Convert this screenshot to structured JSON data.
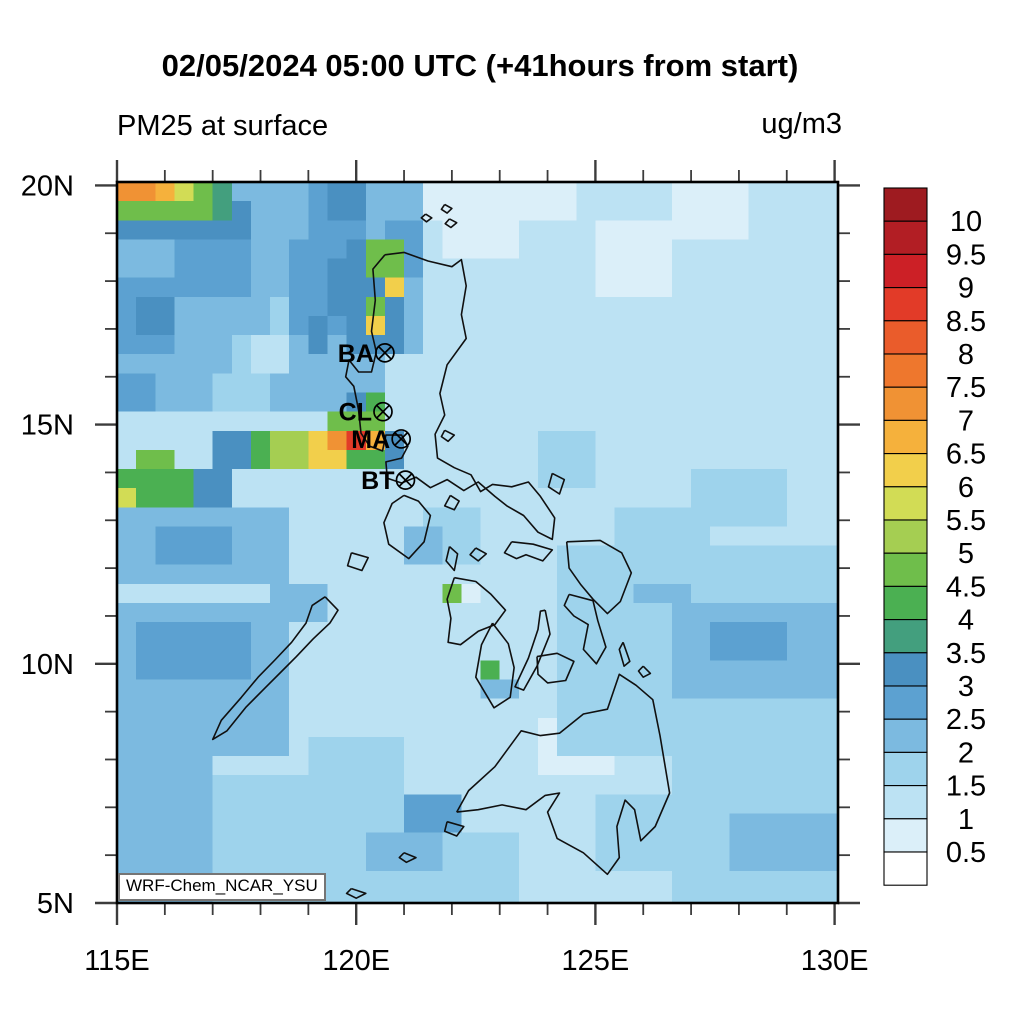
{
  "title": "02/05/2024 05:00 UTC (+41hours from start)",
  "subtitle_left": "PM25 at surface",
  "units_label": "ug/m3",
  "annotation": "WRF-Chem_NCAR_YSU",
  "stations": [
    {
      "id": "BA",
      "lon": 120.6,
      "lat": 16.5
    },
    {
      "id": "CL",
      "lon": 120.56,
      "lat": 15.27
    },
    {
      "id": "MA",
      "lon": 120.94,
      "lat": 14.7
    },
    {
      "id": "BT",
      "lon": 121.03,
      "lat": 13.84
    }
  ],
  "axes": {
    "x_major": [
      {
        "label": "115E",
        "lon": 115
      },
      {
        "label": "120E",
        "lon": 120
      },
      {
        "label": "125E",
        "lon": 125
      },
      {
        "label": "130E",
        "lon": 130
      }
    ],
    "y_major": [
      {
        "label": "20N",
        "lat": 20
      },
      {
        "label": "15N",
        "lat": 15
      },
      {
        "label": "10N",
        "lat": 10
      },
      {
        "label": "5N",
        "lat": 5
      }
    ],
    "minor_step_deg": 1
  },
  "colorbar": {
    "tick_labels": [
      "10",
      "9.5",
      "9",
      "8.5",
      "8",
      "7.5",
      "7",
      "6.5",
      "6",
      "5.5",
      "5",
      "4.5",
      "4",
      "3.5",
      "3",
      "2.5",
      "2",
      "1.5",
      "1",
      "0.5"
    ],
    "colors_low_to_high": [
      "#FFFFFF",
      "#DBEFF9",
      "#BCE2F3",
      "#9ED3EC",
      "#7CBAE0",
      "#5CA1D1",
      "#4A90C1",
      "#439F7E",
      "#4BB052",
      "#6FBE4B",
      "#A5CE52",
      "#D2DC55",
      "#F2CF4B",
      "#F5B13C",
      "#F09234",
      "#EE772D",
      "#EA5C2B",
      "#E23B28",
      "#CC2026",
      "#B21E24",
      "#9E1B20"
    ]
  },
  "chart_data": {
    "type": "heatmap",
    "title": "PM25 at surface",
    "units": "ug/m3",
    "lon_range": [
      115,
      130.07
    ],
    "lat_range": [
      5,
      20.07
    ],
    "cell_deg": 0.4,
    "levels": [
      0.5,
      1,
      1.5,
      2,
      2.5,
      3,
      3.5,
      4,
      4.5,
      5,
      5.5,
      6,
      6.5,
      7,
      7.5,
      8,
      8.5,
      9,
      9.5,
      10
    ],
    "base_value": 1.2,
    "patches": [
      [
        115,
        121.6,
        15.1,
        20.07,
        2.3
      ],
      [
        119.2,
        120.4,
        19.0,
        20.07,
        2.8
      ],
      [
        119.6,
        120.2,
        19.35,
        20.07,
        3.1
      ],
      [
        120.6,
        121.3,
        17.9,
        19.1,
        2.8
      ],
      [
        115.0,
        116.4,
        16.6,
        18.1,
        2.8
      ],
      [
        115.4,
        116.2,
        17.0,
        17.8,
        3.2
      ],
      [
        116.4,
        117.7,
        17.7,
        18.9,
        2.7
      ],
      [
        115.0,
        116.0,
        15.4,
        16.2,
        2.6
      ],
      [
        118.8,
        120.0,
        17.6,
        18.45,
        1.7
      ],
      [
        118.2,
        119.4,
        16.8,
        17.6,
        1.7
      ],
      [
        117.5,
        118.75,
        16.0,
        16.85,
        1.7
      ],
      [
        116.9,
        118.2,
        15.15,
        16.05,
        1.7
      ],
      [
        118.95,
        119.75,
        17.75,
        18.3,
        1.3
      ],
      [
        117.7,
        118.5,
        16.15,
        16.7,
        1.3
      ],
      [
        115,
        117.9,
        18.7,
        19.15,
        3.1
      ],
      [
        116.85,
        117.85,
        18.9,
        19.85,
        3.0
      ],
      [
        115,
        117.25,
        19.1,
        20.07,
        3.7
      ],
      [
        115,
        116.3,
        19.12,
        19.48,
        4.1
      ],
      [
        115,
        116.95,
        19.45,
        20.07,
        4.6
      ],
      [
        115,
        116.5,
        19.68,
        20.07,
        5.5
      ],
      [
        115,
        115.85,
        19.68,
        20.07,
        7.2
      ],
      [
        115.8,
        116.18,
        19.68,
        20.07,
        6.6
      ],
      [
        115,
        115.62,
        19.96,
        20.07,
        8.8
      ],
      [
        119.9,
        121.15,
        16.5,
        18.95,
        3.4
      ],
      [
        118.75,
        119.95,
        16.9,
        18.95,
        2.9
      ],
      [
        119.3,
        119.95,
        17.4,
        18.6,
        3.3
      ],
      [
        120.3,
        120.9,
        18.2,
        18.8,
        4.6
      ],
      [
        120.05,
        120.5,
        18.62,
        18.98,
        4.7
      ],
      [
        120.35,
        120.78,
        17.25,
        17.82,
        4.6
      ],
      [
        120.25,
        120.72,
        16.72,
        17.16,
        4.4
      ],
      [
        120.52,
        120.92,
        17.82,
        18.12,
        6.0
      ],
      [
        120.38,
        120.74,
        16.86,
        17.14,
        6.0
      ],
      [
        118.9,
        119.55,
        16.45,
        17.35,
        3.2
      ],
      [
        120.6,
        121.55,
        14.95,
        16.4,
        1.1
      ],
      [
        119.95,
        120.45,
        15.05,
        15.7,
        3.4
      ],
      [
        120.22,
        120.6,
        15.25,
        15.62,
        4.3
      ],
      [
        117.1,
        121.0,
        13.88,
        15.06,
        3.2
      ],
      [
        117.65,
        120.7,
        14.08,
        14.82,
        4.4
      ],
      [
        118.4,
        120.62,
        14.2,
        14.76,
        5.3
      ],
      [
        118.92,
        120.56,
        14.26,
        14.73,
        6.1
      ],
      [
        119.28,
        120.5,
        14.32,
        14.7,
        7.1
      ],
      [
        119.66,
        120.32,
        14.46,
        14.93,
        8.2
      ],
      [
        119.86,
        120.14,
        14.6,
        14.93,
        8.8
      ],
      [
        119.5,
        120.45,
        14.9,
        15.14,
        4.6
      ],
      [
        120.3,
        120.64,
        14.4,
        14.73,
        6.6
      ],
      [
        119.9,
        120.6,
        13.95,
        14.28,
        4.4
      ],
      [
        120.6,
        121.05,
        14.35,
        14.95,
        3.0
      ],
      [
        115,
        117.35,
        13.12,
        14.1,
        3.2
      ],
      [
        115,
        116.6,
        13.28,
        13.96,
        4.4
      ],
      [
        115,
        115.48,
        13.4,
        13.76,
        5.6
      ],
      [
        115.55,
        116.4,
        13.98,
        14.42,
        4.5
      ],
      [
        115,
        117.0,
        12.68,
        13.14,
        2.6
      ],
      [
        115,
        118.6,
        11.55,
        13.15,
        2.2
      ],
      [
        116.0,
        117.25,
        12.15,
        12.9,
        2.6
      ],
      [
        115,
        118.45,
        8.2,
        11.45,
        2.3
      ],
      [
        115.55,
        117.8,
        9.5,
        10.72,
        2.7
      ],
      [
        118.15,
        119.5,
        10.75,
        11.6,
        2.3
      ],
      [
        115,
        117.0,
        5.0,
        8.2,
        2.0
      ],
      [
        117.0,
        119.1,
        5.0,
        7.6,
        1.7
      ],
      [
        115.35,
        116.5,
        6.35,
        7.4,
        2.4
      ],
      [
        118.55,
        120.45,
        8.55,
        10.6,
        1.4
      ],
      [
        119.0,
        120.25,
        8.95,
        10.2,
        1.0
      ],
      [
        121.35,
        122.45,
        12.25,
        13.1,
        1.9
      ],
      [
        121.15,
        121.7,
        12.2,
        12.8,
        2.4
      ],
      [
        121.8,
        123.05,
        9.55,
        11.25,
        1.4
      ],
      [
        121.88,
        122.28,
        11.08,
        11.5,
        4.5
      ],
      [
        122.28,
        122.62,
        11.08,
        11.5,
        0.9
      ],
      [
        122.5,
        123.35,
        9.28,
        9.66,
        2.4
      ],
      [
        122.72,
        123.18,
        9.6,
        10.02,
        4.4
      ],
      [
        123.15,
        126.35,
        7.35,
        8.95,
        1.1
      ],
      [
        123.8,
        125.6,
        7.55,
        8.72,
        0.8
      ],
      [
        124.2,
        130.07,
        7.95,
        12.6,
        1.9
      ],
      [
        126.55,
        130.07,
        9.2,
        11.45,
        2.4
      ],
      [
        127.35,
        129.45,
        9.9,
        10.95,
        2.9
      ],
      [
        128.95,
        130.07,
        10.25,
        11.0,
        2.4
      ],
      [
        125.95,
        126.85,
        11.35,
        12.25,
        2.2
      ],
      [
        125.55,
        127.3,
        11.8,
        13.45,
        1.6
      ],
      [
        126.6,
        130.07,
        5.0,
        7.95,
        1.7
      ],
      [
        128.0,
        130.07,
        5.55,
        7.0,
        2.1
      ],
      [
        125.15,
        126.45,
        5.55,
        7.2,
        1.6
      ],
      [
        119.1,
        121.1,
        6.4,
        8.6,
        1.6
      ],
      [
        120.85,
        122.05,
        6.5,
        7.18,
        2.7
      ],
      [
        118.6,
        123.45,
        5.0,
        6.45,
        1.8
      ],
      [
        120.15,
        121.85,
        5.55,
        6.62,
        2.2
      ],
      [
        121.25,
        124.65,
        19.2,
        20.07,
        0.9
      ],
      [
        122.0,
        123.3,
        18.45,
        19.25,
        0.9
      ],
      [
        125.05,
        126.5,
        17.5,
        19.35,
        0.8
      ],
      [
        126.5,
        128.3,
        19.0,
        20.07,
        0.8
      ],
      [
        123.85,
        126.85,
        14.3,
        16.65,
        1.4
      ],
      [
        124.3,
        125.7,
        15.15,
        16.3,
        1.0
      ],
      [
        127.0,
        129.1,
        12.95,
        14.25,
        1.5
      ],
      [
        124.0,
        125.05,
        13.85,
        14.72,
        1.6
      ]
    ]
  }
}
